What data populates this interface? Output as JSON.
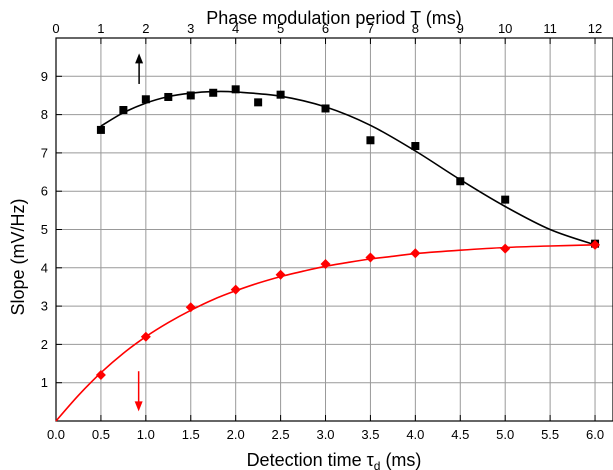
{
  "chart_data": {
    "type": "scatter",
    "top_axis": {
      "label": "Phase modulation period T (ms)",
      "range": [
        0,
        12
      ],
      "ticks": [
        0,
        1,
        2,
        3,
        4,
        5,
        6,
        7,
        8,
        9,
        10,
        11,
        12
      ],
      "tick_labels": [
        "0",
        "1",
        "2",
        "3",
        "4",
        "5",
        "6",
        "7",
        "8",
        "9",
        "10",
        "11",
        "12"
      ]
    },
    "bottom_axis": {
      "label_main": "Detection time ",
      "label_symbol": "τ",
      "label_subscript": "d",
      "label_unit": " (ms)",
      "range": [
        0,
        6.2
      ],
      "ticks": [
        0,
        0.5,
        1,
        1.5,
        2,
        2.5,
        3,
        3.5,
        4,
        4.5,
        5,
        5.5,
        6
      ],
      "tick_labels": [
        "0.0",
        "0.5",
        "1.0",
        "1.5",
        "2.0",
        "2.5",
        "3.0",
        "3.5",
        "4.0",
        "4.5",
        "5.0",
        "5.5",
        "6.0"
      ]
    },
    "y_axis": {
      "label": "Slope (mV/Hz)",
      "range": [
        0,
        10
      ],
      "ticks": [
        1,
        2,
        3,
        4,
        5,
        6,
        7,
        8,
        9
      ],
      "tick_labels": [
        "1",
        "2",
        "3",
        "4",
        "5",
        "6",
        "7",
        "8",
        "9"
      ]
    },
    "grid": true,
    "series": [
      {
        "axis": "top",
        "color": "#000000",
        "marker": "square",
        "x": [
          1,
          1.5,
          2,
          2.5,
          3,
          3.5,
          4,
          4.5,
          5,
          6,
          7,
          8,
          9,
          10,
          12
        ],
        "y": [
          7.6,
          8.12,
          8.4,
          8.46,
          8.5,
          8.57,
          8.66,
          8.32,
          8.52,
          8.16,
          7.33,
          7.18,
          6.26,
          5.78,
          4.63
        ],
        "fit": {
          "x": [
            1,
            1.5,
            2,
            2.5,
            3,
            3.5,
            4,
            5,
            6,
            7,
            8,
            9,
            10,
            11,
            12
          ],
          "y": [
            7.7,
            8.05,
            8.3,
            8.47,
            8.56,
            8.6,
            8.59,
            8.48,
            8.2,
            7.72,
            7.05,
            6.3,
            5.6,
            5.0,
            4.6
          ]
        }
      },
      {
        "axis": "bottom",
        "color": "#ff0000",
        "marker": "diamond",
        "x": [
          0.5,
          1,
          1.5,
          2,
          2.5,
          3,
          3.5,
          4,
          5,
          6
        ],
        "y": [
          1.2,
          2.2,
          2.97,
          3.43,
          3.82,
          4.1,
          4.27,
          4.38,
          4.5,
          4.6
        ],
        "fit": {
          "x": [
            0,
            0.25,
            0.5,
            0.75,
            1,
            1.25,
            1.5,
            1.75,
            2,
            2.25,
            2.5,
            2.75,
            3,
            3.25,
            3.5,
            3.75,
            4,
            4.5,
            5,
            5.5,
            6
          ],
          "y": [
            0,
            0.67,
            1.26,
            1.77,
            2.2,
            2.57,
            2.89,
            3.17,
            3.4,
            3.6,
            3.77,
            3.91,
            4.04,
            4.14,
            4.23,
            4.3,
            4.37,
            4.46,
            4.53,
            4.57,
            4.6
          ]
        }
      }
    ],
    "annotations": [
      {
        "type": "arrow",
        "direction": "up",
        "color": "#000000",
        "axis": "top",
        "x": 1.85,
        "y_from": 8.8,
        "y_to": 9.6
      },
      {
        "type": "arrow",
        "direction": "down",
        "color": "#ff0000",
        "axis": "bottom",
        "x": 0.92,
        "y_from": 1.3,
        "y_to": 0.25
      }
    ]
  }
}
